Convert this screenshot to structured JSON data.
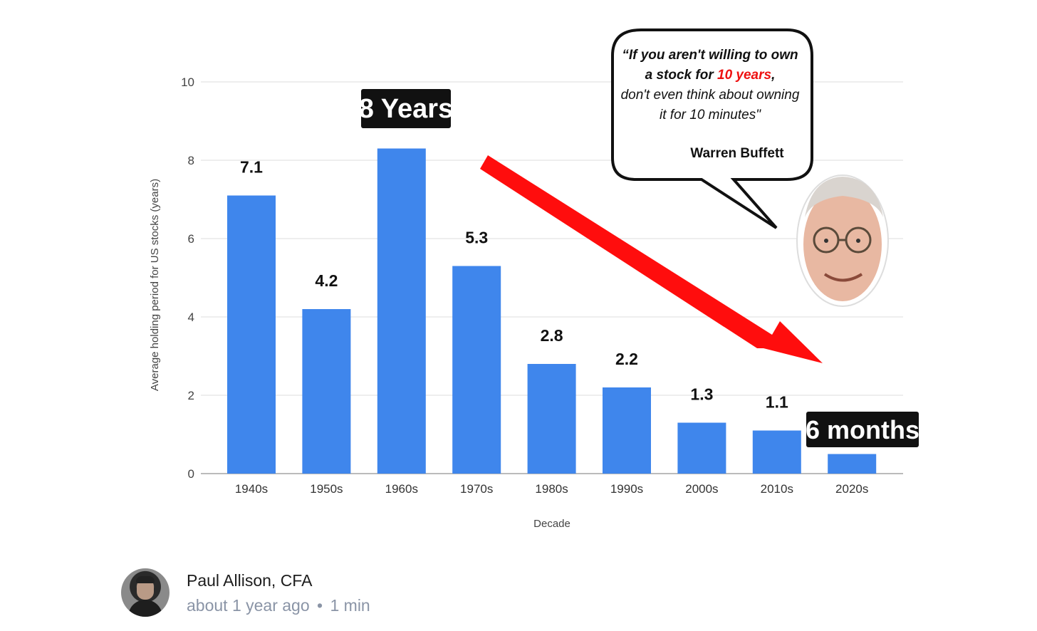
{
  "chart_data": {
    "type": "bar",
    "categories": [
      "1940s",
      "1950s",
      "1960s",
      "1970s",
      "1980s",
      "1990s",
      "2000s",
      "2010s",
      "2020s"
    ],
    "values": [
      7.1,
      4.2,
      8.3,
      5.3,
      2.8,
      2.2,
      1.3,
      1.1,
      0.5
    ],
    "data_labels": [
      "7.1",
      "4.2",
      "",
      "5.3",
      "2.8",
      "2.2",
      "1.3",
      "1.1",
      ""
    ],
    "xlabel": "Decade",
    "ylabel": "Average holding period for US stocks (years)",
    "ylim": [
      0,
      10
    ],
    "yticks": [
      "0",
      "2",
      "4",
      "6",
      "8",
      "10"
    ],
    "grid": true,
    "bar_color": "#3f86ec",
    "annotations": {
      "peak_tag": "8 Years",
      "end_tag": "6 months",
      "arrow_color": "#ff0d0d",
      "quote_line1": "“If you aren't willing to own",
      "quote_line2_before": "a stock for ",
      "quote_line2_highlight": "10 years",
      "quote_line2_after": ",",
      "quote_line3": "don't even think about owning",
      "quote_line4": "it for 10 minutes\"",
      "quote_author": "Warren Buffett",
      "highlight_color": "#ee1111"
    }
  },
  "byline": {
    "author": "Paul Allison, CFA",
    "time_ago": "about 1 year ago",
    "separator": "•",
    "read_time": "1 min"
  }
}
